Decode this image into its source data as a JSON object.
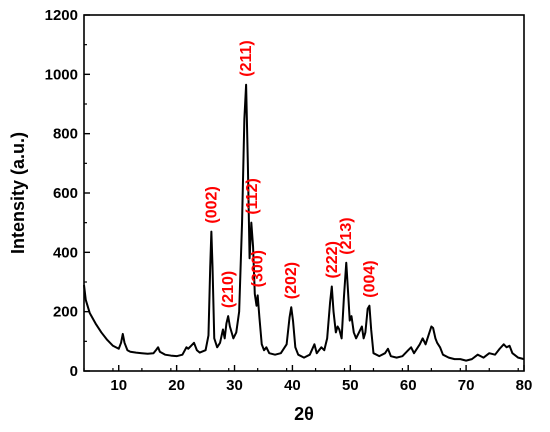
{
  "chart_data": {
    "type": "line",
    "xlabel": "2θ",
    "ylabel": "Intensity (a.u.)",
    "xlim": [
      4,
      80
    ],
    "ylim": [
      0,
      1200
    ],
    "x_ticks": [
      10,
      20,
      30,
      40,
      50,
      60,
      70,
      80
    ],
    "y_ticks": [
      0,
      200,
      400,
      600,
      800,
      1000,
      1200
    ],
    "grid": false,
    "line_color": "#000000",
    "label_color": "#ff0000",
    "series": [
      {
        "points": [
          [
            4.0,
            290
          ],
          [
            4.3,
            240
          ],
          [
            5,
            195
          ],
          [
            6,
            160
          ],
          [
            7,
            130
          ],
          [
            8,
            105
          ],
          [
            9,
            85
          ],
          [
            10,
            75
          ],
          [
            10.4,
            95
          ],
          [
            10.7,
            125
          ],
          [
            11.0,
            95
          ],
          [
            11.5,
            70
          ],
          [
            12,
            65
          ],
          [
            13,
            62
          ],
          [
            14,
            60
          ],
          [
            15,
            58
          ],
          [
            16,
            60
          ],
          [
            16.5,
            72
          ],
          [
            16.8,
            80
          ],
          [
            17.1,
            65
          ],
          [
            18,
            55
          ],
          [
            19,
            52
          ],
          [
            20,
            50
          ],
          [
            21,
            55
          ],
          [
            21.7,
            80
          ],
          [
            22,
            75
          ],
          [
            22.5,
            85
          ],
          [
            23,
            95
          ],
          [
            23.5,
            70
          ],
          [
            24,
            62
          ],
          [
            25,
            70
          ],
          [
            25.5,
            120
          ],
          [
            25.8,
            350
          ],
          [
            26.0,
            470
          ],
          [
            26.2,
            350
          ],
          [
            26.5,
            110
          ],
          [
            27,
            80
          ],
          [
            27.5,
            95
          ],
          [
            28,
            140
          ],
          [
            28.3,
            110
          ],
          [
            28.6,
            160
          ],
          [
            28.9,
            185
          ],
          [
            29.2,
            150
          ],
          [
            29.8,
            110
          ],
          [
            30.3,
            130
          ],
          [
            30.8,
            200
          ],
          [
            31.3,
            500
          ],
          [
            31.7,
            850
          ],
          [
            32.0,
            965
          ],
          [
            32.3,
            700
          ],
          [
            32.6,
            380
          ],
          [
            32.9,
            500
          ],
          [
            33.2,
            420
          ],
          [
            33.5,
            260
          ],
          [
            33.8,
            220
          ],
          [
            34.0,
            255
          ],
          [
            34.3,
            180
          ],
          [
            34.7,
            90
          ],
          [
            35.1,
            70
          ],
          [
            35.5,
            80
          ],
          [
            36,
            60
          ],
          [
            37,
            55
          ],
          [
            38,
            60
          ],
          [
            39,
            90
          ],
          [
            39.5,
            180
          ],
          [
            39.8,
            215
          ],
          [
            40.1,
            170
          ],
          [
            40.5,
            80
          ],
          [
            41,
            55
          ],
          [
            42,
            45
          ],
          [
            43,
            55
          ],
          [
            43.8,
            90
          ],
          [
            44.2,
            60
          ],
          [
            45,
            80
          ],
          [
            45.5,
            70
          ],
          [
            46,
            110
          ],
          [
            46.5,
            230
          ],
          [
            46.8,
            285
          ],
          [
            47.1,
            200
          ],
          [
            47.5,
            130
          ],
          [
            47.8,
            150
          ],
          [
            48.1,
            140
          ],
          [
            48.5,
            110
          ],
          [
            48.9,
            250
          ],
          [
            49.3,
            365
          ],
          [
            49.6,
            270
          ],
          [
            49.9,
            170
          ],
          [
            50.2,
            185
          ],
          [
            50.6,
            130
          ],
          [
            51.0,
            110
          ],
          [
            51.5,
            130
          ],
          [
            52.0,
            150
          ],
          [
            52.3,
            110
          ],
          [
            52.6,
            130
          ],
          [
            53.0,
            210
          ],
          [
            53.3,
            220
          ],
          [
            53.6,
            140
          ],
          [
            54,
            60
          ],
          [
            55,
            50
          ],
          [
            56,
            60
          ],
          [
            56.5,
            75
          ],
          [
            57,
            50
          ],
          [
            58,
            45
          ],
          [
            59,
            50
          ],
          [
            60,
            70
          ],
          [
            60.5,
            80
          ],
          [
            61,
            60
          ],
          [
            62,
            90
          ],
          [
            62.5,
            110
          ],
          [
            63,
            90
          ],
          [
            63.5,
            120
          ],
          [
            64,
            150
          ],
          [
            64.3,
            145
          ],
          [
            64.7,
            110
          ],
          [
            65,
            95
          ],
          [
            65.5,
            80
          ],
          [
            66,
            55
          ],
          [
            67,
            45
          ],
          [
            68,
            40
          ],
          [
            69,
            40
          ],
          [
            70,
            35
          ],
          [
            71,
            40
          ],
          [
            72,
            55
          ],
          [
            72.5,
            50
          ],
          [
            73,
            45
          ],
          [
            74,
            60
          ],
          [
            75,
            55
          ],
          [
            75.8,
            75
          ],
          [
            76.5,
            90
          ],
          [
            77,
            80
          ],
          [
            77.5,
            85
          ],
          [
            78,
            60
          ],
          [
            79,
            45
          ],
          [
            80,
            40
          ]
        ]
      }
    ],
    "peak_labels": [
      {
        "text": "(002)",
        "x": 26.0,
        "y": 470
      },
      {
        "text": "(210)",
        "x": 28.9,
        "y": 185
      },
      {
        "text": "(211)",
        "x": 32.0,
        "y": 965
      },
      {
        "text": "(112)",
        "x": 33.0,
        "y": 500
      },
      {
        "text": "(300)",
        "x": 34.0,
        "y": 255
      },
      {
        "text": "(202)",
        "x": 39.8,
        "y": 215
      },
      {
        "text": "(222)",
        "x": 46.8,
        "y": 285
      },
      {
        "text": "(213)",
        "x": 49.3,
        "y": 365
      },
      {
        "text": "(004)",
        "x": 53.3,
        "y": 220
      }
    ]
  }
}
